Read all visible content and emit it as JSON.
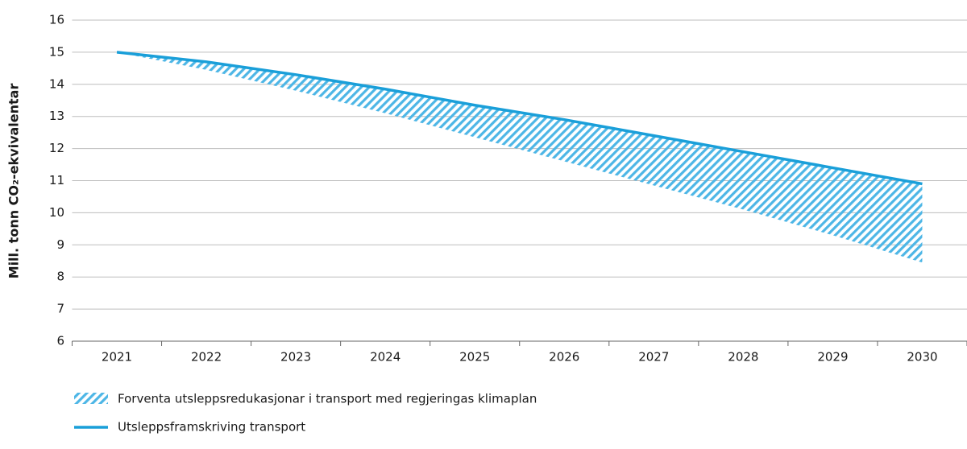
{
  "chart_data": {
    "type": "band-line",
    "y_label": "Mill. tonn CO₂-ekvivalentar",
    "categories": [
      "2021",
      "2022",
      "2023",
      "2024",
      "2025",
      "2026",
      "2027",
      "2028",
      "2029",
      "2030"
    ],
    "series": [
      {
        "name": "Forventa utsleppsredukasjonar i transport med regjeringas klimaplan",
        "color": "#4db6e6",
        "values": [
          15,
          14.45,
          13.8,
          13.1,
          12.35,
          11.6,
          10.85,
          10.1,
          9.3,
          8.45
        ]
      },
      {
        "name": "Utsleppsframskriving transport",
        "color": "#1a9fd9",
        "values": [
          15,
          14.7,
          14.3,
          13.85,
          13.35,
          12.9,
          12.4,
          11.9,
          11.4,
          10.9
        ]
      }
    ],
    "ylim": [
      6,
      16
    ],
    "yticks": [
      6,
      7,
      8,
      9,
      10,
      11,
      12,
      13,
      14,
      15,
      16
    ],
    "grid": true
  }
}
